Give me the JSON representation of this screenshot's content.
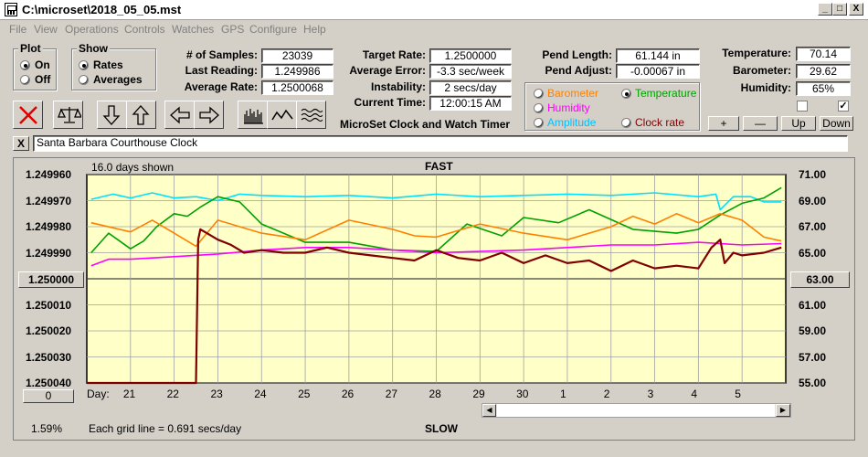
{
  "window": {
    "title": "C:\\microset\\2018_05_05.mst",
    "min": "_",
    "max": "□",
    "close": "X"
  },
  "menu": [
    "File",
    "View",
    "Operations",
    "Controls",
    "Watches",
    "GPS",
    "Configure",
    "Help"
  ],
  "plot_group": {
    "title": "Plot",
    "options": [
      "On",
      "Off"
    ],
    "selected": "On"
  },
  "show_group": {
    "title": "Show",
    "options": [
      "Rates",
      "Averages"
    ],
    "selected": "Rates"
  },
  "stats": {
    "samples_label": "# of Samples:",
    "samples": "23039",
    "last_label": "Last Reading:",
    "last": "1.249986",
    "avg_label": "Average Rate:",
    "avg": "1.2500068",
    "target_label": "Target Rate:",
    "target": "1.2500000",
    "avgerr_label": "Average Error:",
    "avgerr": "-3.3 sec/week",
    "instab_label": "Instability:",
    "instab": "2 secs/day",
    "time_label": "Current Time:",
    "time": "12:00:15 AM",
    "pendlen_label": "Pend Length:",
    "pendlen": "61.144 in",
    "pendadj_label": "Pend Adjust:",
    "pendadj": "-0.00067 in",
    "temp_label": "Temperature:",
    "temp": "70.14",
    "baro_label": "Barometer:",
    "baro": "29.62",
    "hum_label": "Humidity:",
    "hum": "65%"
  },
  "app_caption": "MicroSet Clock and Watch Timer",
  "sensor_group": {
    "options": [
      {
        "label": "Barometer",
        "color": "#ff8000",
        "selected": false
      },
      {
        "label": "Temperature",
        "color": "#00a000",
        "selected": true
      },
      {
        "label": "Humidity",
        "color": "#ff00ff",
        "selected": false
      },
      {
        "label": "Amplitude",
        "color": "#00c0ff",
        "selected": false
      },
      {
        "label": "Clock rate",
        "color": "#800000",
        "selected": false
      }
    ]
  },
  "right_buttons": [
    "+",
    "—",
    "Up",
    "Down"
  ],
  "checkboxes": [
    false,
    true
  ],
  "comment": {
    "clear": "X",
    "text": "Santa Barbara Courthouse Clock"
  },
  "toolbar_icons": [
    "delete-icon",
    "balance-icon",
    "arrow-down-icon",
    "arrow-up-icon",
    "arrow-left-icon",
    "arrow-right-icon",
    "histogram-icon",
    "wave-icon",
    "waves-icon"
  ],
  "chart": {
    "top_label": "FAST",
    "bottom_label": "SLOW",
    "days_shown": "16.0 days shown",
    "grid_note": "Each grid line = 0.691 secs/day",
    "percent": "1.59%",
    "left_button": "1.250000",
    "right_button": "63.00",
    "bottom_button": "0",
    "day_label": "Day:"
  },
  "chart_data": {
    "type": "line",
    "y_left_ticks": [
      "1.249960",
      "1.249970",
      "1.249980",
      "1.249990",
      "1.250000",
      "1.250010",
      "1.250020",
      "1.250030",
      "1.250040"
    ],
    "y_right_ticks": [
      "71.00",
      "69.00",
      "67.00",
      "65.00",
      "63.00",
      "61.00",
      "59.00",
      "57.00",
      "55.00"
    ],
    "ylim_left": [
      1.24996,
      1.25004
    ],
    "ylim_right": [
      55,
      71
    ],
    "x_ticks": [
      "21",
      "22",
      "23",
      "24",
      "25",
      "26",
      "27",
      "28",
      "29",
      "30",
      "1",
      "2",
      "3",
      "4",
      "5"
    ],
    "xlim": [
      20,
      36
    ],
    "series": [
      {
        "color": "#00e0ff",
        "axis": "right",
        "x": [
          20.1,
          20.6,
          21.0,
          21.5,
          22.0,
          22.5,
          23.0,
          23.5,
          24.0,
          25.0,
          26.0,
          27.0,
          28.0,
          29.0,
          30.0,
          31.0,
          32.0,
          33.0,
          34.0,
          34.4,
          34.5,
          34.8,
          35.2,
          35.5,
          35.9
        ],
        "y": [
          69.1,
          69.5,
          69.2,
          69.6,
          69.2,
          69.3,
          69.0,
          69.5,
          69.4,
          69.3,
          69.4,
          69.2,
          69.5,
          69.3,
          69.4,
          69.5,
          69.4,
          69.6,
          69.3,
          69.5,
          68.3,
          69.3,
          69.3,
          68.9,
          68.9
        ]
      },
      {
        "color": "#00a000",
        "axis": "right",
        "x": [
          20.1,
          20.5,
          21.0,
          21.3,
          21.6,
          22.0,
          22.3,
          22.6,
          23.0,
          23.5,
          24.0,
          25.0,
          26.0,
          27.0,
          28.0,
          28.7,
          29.5,
          30.0,
          30.8,
          31.5,
          32.5,
          33.5,
          34.0,
          34.5,
          35.0,
          35.5,
          35.9
        ],
        "y": [
          65.0,
          66.5,
          65.3,
          65.9,
          67.0,
          68.0,
          67.8,
          68.5,
          69.3,
          68.9,
          67.2,
          65.8,
          65.8,
          65.2,
          65.1,
          67.2,
          66.3,
          67.7,
          67.3,
          68.3,
          66.8,
          66.5,
          66.8,
          67.9,
          68.8,
          69.2,
          70.0
        ]
      },
      {
        "color": "#ff8000",
        "axis": "right",
        "x": [
          20.1,
          21.0,
          21.5,
          22.0,
          22.5,
          23.0,
          24.0,
          25.0,
          26.0,
          27.0,
          27.5,
          28.0,
          29.0,
          30.0,
          31.0,
          32.0,
          32.5,
          33.0,
          33.5,
          34.0,
          34.5,
          35.0,
          35.5,
          35.9
        ],
        "y": [
          67.3,
          66.6,
          67.5,
          66.5,
          65.5,
          67.5,
          66.5,
          66.0,
          67.5,
          66.8,
          66.3,
          66.2,
          67.2,
          66.5,
          66.0,
          67.0,
          67.8,
          67.2,
          68.0,
          67.3,
          68.0,
          67.5,
          66.2,
          65.9
        ]
      },
      {
        "color": "#ff00ff",
        "axis": "right",
        "x": [
          20.1,
          20.5,
          21.0,
          22.0,
          23.0,
          24.0,
          25.0,
          26.0,
          27.0,
          28.0,
          29.0,
          30.0,
          31.0,
          32.0,
          33.0,
          34.0,
          35.0,
          35.9
        ],
        "y": [
          64.0,
          64.5,
          64.5,
          64.7,
          64.9,
          65.2,
          65.4,
          65.4,
          65.2,
          65.0,
          65.1,
          65.2,
          65.4,
          65.6,
          65.6,
          65.8,
          65.6,
          65.7
        ]
      },
      {
        "color": "#800000",
        "axis": "left",
        "x": [
          20.0,
          22.5,
          22.55,
          22.6,
          22.8,
          23.0,
          23.3,
          23.6,
          24.0,
          24.5,
          25.0,
          25.5,
          26.0,
          26.5,
          27.0,
          27.5,
          28.0,
          28.5,
          29.0,
          29.5,
          30.0,
          30.5,
          31.0,
          31.5,
          32.0,
          32.5,
          33.0,
          33.5,
          34.0,
          34.3,
          34.5,
          34.6,
          34.8,
          35.0,
          35.5,
          35.9
        ],
        "y": [
          1.25004,
          1.25004,
          1.249985,
          1.249981,
          1.249983,
          1.249985,
          1.249987,
          1.24999,
          1.249989,
          1.24999,
          1.24999,
          1.249988,
          1.24999,
          1.249991,
          1.249992,
          1.249993,
          1.249989,
          1.249992,
          1.249993,
          1.24999,
          1.249994,
          1.249991,
          1.249994,
          1.249993,
          1.249997,
          1.249993,
          1.249996,
          1.249995,
          1.249996,
          1.249988,
          1.249985,
          1.249994,
          1.24999,
          1.249991,
          1.24999,
          1.249988
        ]
      }
    ]
  }
}
